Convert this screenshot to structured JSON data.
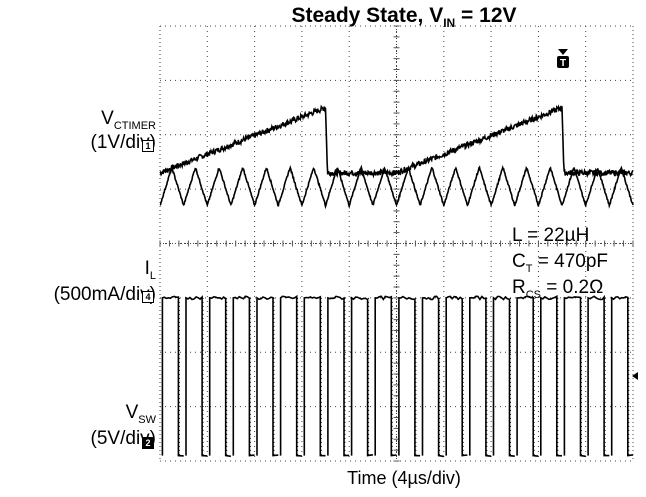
{
  "chart_data": {
    "type": "line",
    "title": {
      "main": "Steady State, V",
      "sub": "IN",
      "tail": " = 12V"
    },
    "xlabel": "Time (4µs/div)",
    "grid": true,
    "x": {
      "divisions": 10,
      "unit_per_div": "4µs"
    },
    "y": {
      "divisions": 8
    },
    "trigger_label": "T",
    "channels": [
      {
        "id": "1",
        "name_main": "V",
        "name_sub": "CTIMER",
        "scale": "(1V/div)",
        "waveform": "sawtooth",
        "period_div": 5.0,
        "ramp_div": 3.5,
        "low_div": 5.3,
        "high_div": 6.5,
        "noise": 0.05
      },
      {
        "id": "4",
        "name_main": "I",
        "name_sub": "L",
        "scale": "(500mA/div)",
        "waveform": "triangle",
        "period_div": 0.5,
        "low_div": 4.7,
        "high_div": 5.4,
        "noise": 0.02
      },
      {
        "id": "2",
        "name_main": "V",
        "name_sub": "SW",
        "scale": "(5V/div)",
        "waveform": "pulse",
        "period_div": 0.5,
        "duty": 0.2,
        "low_div": 0.1,
        "high_div": 3.0,
        "noise": 0.03
      }
    ],
    "annotations": [
      {
        "main": "L = 22µH",
        "sub": "",
        "tail": ""
      },
      {
        "main": "C",
        "sub": "T",
        "tail": " = 470pF"
      },
      {
        "main": "R",
        "sub": "CS",
        "tail": " = 0.2Ω"
      }
    ]
  }
}
